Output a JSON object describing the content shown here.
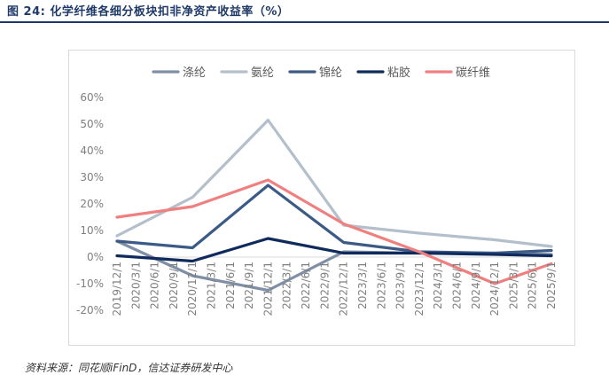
{
  "figure_title": "图 24: 化学纤维各细分板块扣非净资产收益率（%）",
  "source_text": "资料来源：同花顺iFinD，信达证券研发中心",
  "chart_data": {
    "type": "line",
    "x": [
      "2019/12/1",
      "2020/3/1",
      "2020/6/1",
      "2020/9/1",
      "2020/12/1",
      "2021/3/1",
      "2021/6/1",
      "2021/9/1",
      "2021/12/1",
      "2022/3/1",
      "2022/6/1",
      "2022/9/1",
      "2022/12/1",
      "2023/3/1",
      "2023/6/1",
      "2023/9/1",
      "2023/12/1",
      "2024/3/1",
      "2024/6/1",
      "2024/9/1",
      "2024/12/1",
      "2025/3/1",
      "2025/6/1",
      "2025/9/1"
    ],
    "ylim": [
      -20,
      60
    ],
    "yticks": [
      "60%",
      "50%",
      "40%",
      "30%",
      "20%",
      "10%",
      "0%",
      "-10%",
      "-20%"
    ],
    "ytick_values": [
      60,
      50,
      40,
      30,
      20,
      10,
      0,
      -10,
      -20
    ],
    "grid": false,
    "legend_position": "top",
    "series": [
      {
        "name": "涤纶",
        "color": "#7f8fa6",
        "points": [
          [
            0,
            6
          ],
          [
            4,
            -7
          ],
          [
            8,
            -12.5
          ],
          [
            12,
            2
          ],
          [
            16,
            1.5
          ],
          [
            20,
            1.5
          ],
          [
            23,
            1
          ]
        ]
      },
      {
        "name": "氨纶",
        "color": "#b4bfcc",
        "points": [
          [
            0,
            8
          ],
          [
            4,
            22.5
          ],
          [
            8,
            51.5
          ],
          [
            12,
            12
          ],
          [
            16,
            9
          ],
          [
            20,
            6.5
          ],
          [
            23,
            4
          ]
        ]
      },
      {
        "name": "锦纶",
        "color": "#3b5a85",
        "points": [
          [
            0,
            6
          ],
          [
            4,
            3.5
          ],
          [
            8,
            27
          ],
          [
            12,
            5.5
          ],
          [
            16,
            2
          ],
          [
            20,
            1.5
          ],
          [
            23,
            2.5
          ]
        ]
      },
      {
        "name": "粘胶",
        "color": "#0f2a5c",
        "points": [
          [
            0,
            0.5
          ],
          [
            4,
            -1.5
          ],
          [
            8,
            7
          ],
          [
            12,
            1.5
          ],
          [
            16,
            1.5
          ],
          [
            20,
            1
          ],
          [
            23,
            0.5
          ]
        ]
      },
      {
        "name": "碳纤维",
        "color": "#f08080",
        "points": [
          [
            0,
            15
          ],
          [
            4,
            19
          ],
          [
            8,
            29
          ],
          [
            12,
            12.5
          ],
          [
            16,
            2
          ],
          [
            20,
            -10
          ],
          [
            23,
            -2.5
          ]
        ]
      }
    ]
  }
}
